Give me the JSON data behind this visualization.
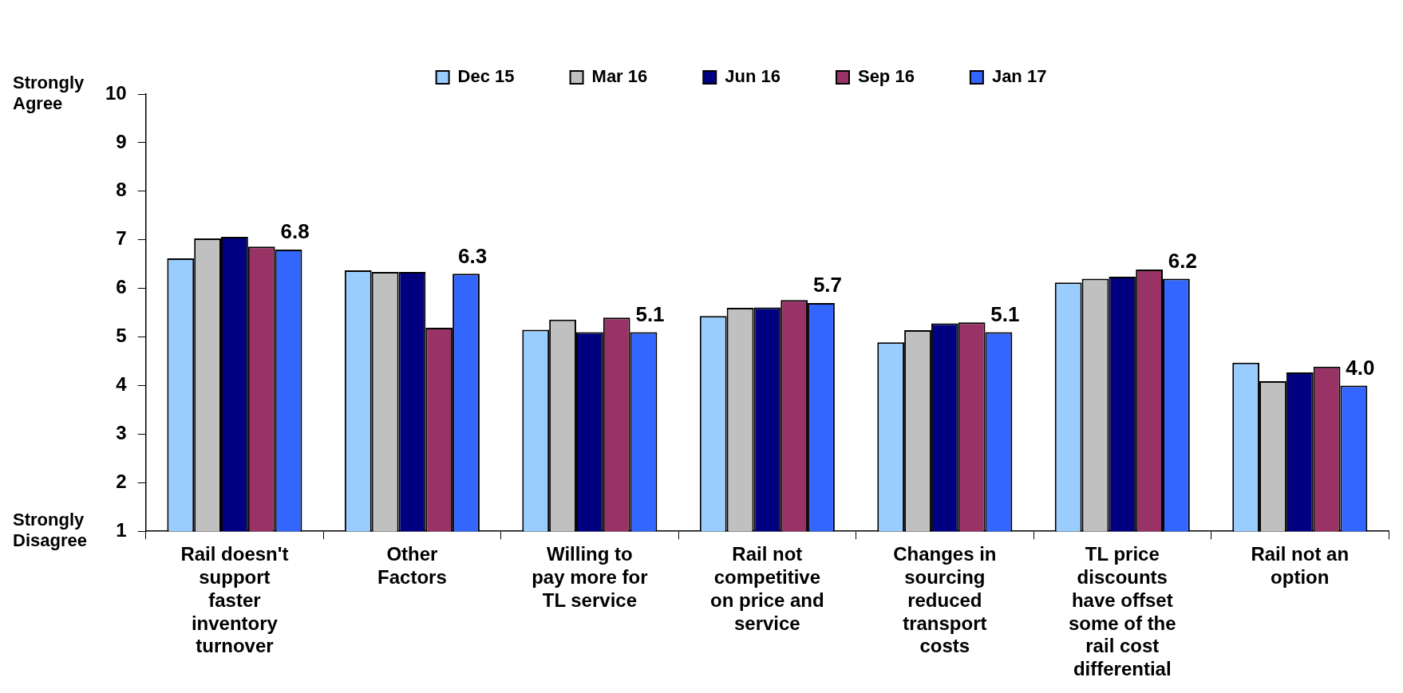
{
  "chart_data": {
    "type": "bar",
    "categories": [
      "Rail doesn't support faster inventory turnover",
      "Other Factors",
      "Willing to pay more for TL service",
      "Rail not competitive on price and service",
      "Changes in sourcing reduced transport costs",
      "TL price discounts have offset some of the rail cost differential",
      "Rail not an option"
    ],
    "series": [
      {
        "name": "Dec 15",
        "color": "#99ccff",
        "values": [
          6.62,
          6.37,
          5.15,
          5.43,
          4.89,
          6.12,
          4.47
        ]
      },
      {
        "name": "Mar 16",
        "color": "#c0c0c0",
        "values": [
          7.03,
          6.34,
          5.36,
          5.6,
          5.14,
          6.2,
          4.09
        ]
      },
      {
        "name": "Jun 16",
        "color": "#000080",
        "values": [
          7.06,
          6.34,
          5.1,
          5.61,
          5.28,
          6.24,
          4.27
        ]
      },
      {
        "name": "Sep 16",
        "color": "#993366",
        "values": [
          6.86,
          5.19,
          5.4,
          5.76,
          5.3,
          6.39,
          4.39
        ]
      },
      {
        "name": "Jan 17",
        "color": "#3366ff",
        "values": [
          6.8,
          6.3,
          5.1,
          5.7,
          5.1,
          6.2,
          4.0
        ],
        "value_labels": [
          "6.8",
          "6.3",
          "5.1",
          "5.7",
          "5.1",
          "6.2",
          "4.0"
        ]
      }
    ],
    "ylim": [
      1,
      10
    ],
    "yticks": [
      1,
      2,
      3,
      4,
      5,
      6,
      7,
      8,
      9,
      10
    ],
    "grid": false,
    "legend": "top",
    "annotations": [
      "Strongly Agree",
      "Strongly Disagree"
    ]
  }
}
